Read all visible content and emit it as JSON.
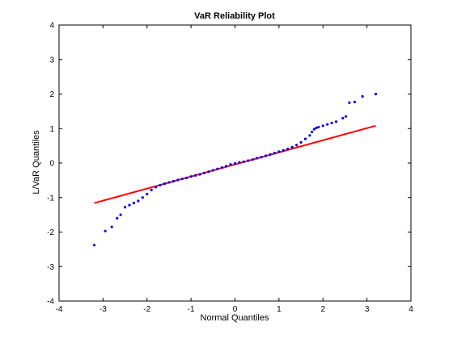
{
  "chart_data": {
    "type": "scatter",
    "title": "VaR Reliability Plot",
    "xlabel": "Normal Quantiles",
    "ylabel": "L/VaR Quantiles",
    "xlim": [
      -4,
      4
    ],
    "ylim": [
      -4,
      4
    ],
    "xticks": [
      "-4",
      "-3",
      "-2",
      "-1",
      "0",
      "1",
      "2",
      "3",
      "4"
    ],
    "yticks": [
      "-4",
      "-3",
      "-2",
      "-1",
      "0",
      "1",
      "2",
      "3",
      "4"
    ],
    "grid": false,
    "colors": {
      "points": "#0000ff",
      "reference_line": "#ff0000"
    },
    "reference_line": {
      "x": [
        -3.2,
        3.2
      ],
      "y": [
        -1.16,
        1.08
      ]
    },
    "series": [
      {
        "points": [
          [
            -3.2,
            -2.38
          ],
          [
            -2.95,
            -1.97
          ],
          [
            -2.8,
            -1.85
          ],
          [
            -2.68,
            -1.6
          ],
          [
            -2.6,
            -1.5
          ],
          [
            -2.5,
            -1.28
          ],
          [
            -2.4,
            -1.22
          ],
          [
            -2.3,
            -1.16
          ],
          [
            -2.2,
            -1.1
          ],
          [
            -2.1,
            -1.0
          ],
          [
            -2.0,
            -0.9
          ],
          [
            -1.9,
            -0.78
          ],
          [
            -1.8,
            -0.7
          ],
          [
            -1.7,
            -0.64
          ],
          [
            -1.6,
            -0.6
          ],
          [
            -1.5,
            -0.56
          ],
          [
            -1.4,
            -0.53
          ],
          [
            -1.3,
            -0.49
          ],
          [
            -1.2,
            -0.46
          ],
          [
            -1.1,
            -0.43
          ],
          [
            -1.0,
            -0.39
          ],
          [
            -0.9,
            -0.36
          ],
          [
            -0.8,
            -0.33
          ],
          [
            -0.7,
            -0.29
          ],
          [
            -0.6,
            -0.25
          ],
          [
            -0.5,
            -0.21
          ],
          [
            -0.4,
            -0.17
          ],
          [
            -0.3,
            -0.13
          ],
          [
            -0.2,
            -0.09
          ],
          [
            -0.1,
            -0.04
          ],
          [
            0.0,
            -0.01
          ],
          [
            0.1,
            0.02
          ],
          [
            0.2,
            0.04
          ],
          [
            0.3,
            0.07
          ],
          [
            0.4,
            0.1
          ],
          [
            0.5,
            0.14
          ],
          [
            0.6,
            0.17
          ],
          [
            0.7,
            0.21
          ],
          [
            0.8,
            0.25
          ],
          [
            0.9,
            0.29
          ],
          [
            1.0,
            0.33
          ],
          [
            1.1,
            0.37
          ],
          [
            1.2,
            0.41
          ],
          [
            1.3,
            0.46
          ],
          [
            1.4,
            0.52
          ],
          [
            1.5,
            0.6
          ],
          [
            1.6,
            0.7
          ],
          [
            1.7,
            0.8
          ],
          [
            1.75,
            0.9
          ],
          [
            1.8,
            0.98
          ],
          [
            1.85,
            1.02
          ],
          [
            1.9,
            1.04
          ],
          [
            2.0,
            1.08
          ],
          [
            2.1,
            1.12
          ],
          [
            2.2,
            1.16
          ],
          [
            2.3,
            1.2
          ],
          [
            2.45,
            1.3
          ],
          [
            2.52,
            1.35
          ],
          [
            2.6,
            1.75
          ],
          [
            2.72,
            1.77
          ],
          [
            2.9,
            1.93
          ],
          [
            3.2,
            2.0
          ]
        ]
      }
    ]
  }
}
